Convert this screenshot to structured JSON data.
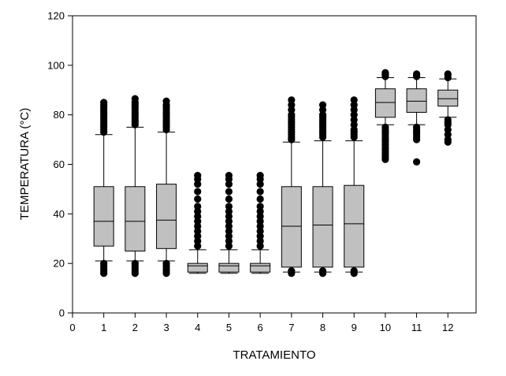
{
  "chart_data": {
    "type": "boxplot",
    "xlabel": "TRATAMIENTO",
    "ylabel": "TEMPERATURA (°C)",
    "xlim": [
      0,
      12.9
    ],
    "ylim": [
      0,
      120
    ],
    "x_ticks": [
      0,
      1,
      2,
      3,
      4,
      5,
      6,
      7,
      8,
      9,
      10,
      11,
      12
    ],
    "y_ticks": [
      0,
      20,
      40,
      60,
      80,
      100,
      120
    ],
    "grid": false,
    "box_fill": "#c0c0c0",
    "boxes": [
      {
        "x": 1,
        "whisker_low": 21,
        "q1": 27,
        "median": 37,
        "q3": 51,
        "whisker_high": 72,
        "outliers": [
          16,
          17,
          18,
          19,
          20,
          73,
          74,
          75,
          76,
          77,
          78,
          79,
          80,
          81,
          82,
          83,
          84,
          85
        ]
      },
      {
        "x": 2,
        "whisker_low": 21,
        "q1": 25,
        "median": 37,
        "q3": 51,
        "whisker_high": 75,
        "outliers": [
          16,
          17,
          18,
          19,
          20,
          76,
          77,
          78,
          79,
          80,
          81,
          82,
          83,
          84,
          85,
          86.5
        ]
      },
      {
        "x": 3,
        "whisker_low": 21,
        "q1": 26,
        "median": 37.5,
        "q3": 52,
        "whisker_high": 73,
        "outliers": [
          16,
          17,
          18,
          19,
          20,
          74,
          75,
          76,
          77,
          78,
          79,
          80,
          81,
          82,
          83,
          84,
          85.5
        ]
      },
      {
        "x": 4,
        "whisker_low": 16,
        "q1": 16.5,
        "median": 19,
        "q3": 20,
        "whisker_high": 25.5,
        "outliers": [
          27,
          29,
          31,
          33,
          35,
          37,
          39,
          41,
          43,
          46,
          49,
          52,
          54,
          55.5
        ]
      },
      {
        "x": 5,
        "whisker_low": 16,
        "q1": 16.5,
        "median": 19,
        "q3": 20,
        "whisker_high": 25.5,
        "outliers": [
          27,
          29,
          31,
          33,
          35,
          37,
          39,
          41,
          43,
          46,
          49,
          52,
          54,
          55.5
        ]
      },
      {
        "x": 6,
        "whisker_low": 16,
        "q1": 16.5,
        "median": 19,
        "q3": 20,
        "whisker_high": 25.5,
        "outliers": [
          27,
          29,
          31,
          33,
          35,
          37,
          39,
          41,
          43,
          46,
          49,
          52,
          54,
          55.5
        ]
      },
      {
        "x": 7,
        "whisker_low": 16.5,
        "q1": 18.5,
        "median": 35,
        "q3": 51,
        "whisker_high": 69,
        "outliers": [
          16,
          17,
          70,
          71,
          72,
          73,
          74,
          75,
          76,
          77,
          78,
          79,
          80,
          82,
          84,
          86
        ]
      },
      {
        "x": 8,
        "whisker_low": 16.5,
        "q1": 18.5,
        "median": 35.5,
        "q3": 51,
        "whisker_high": 69.5,
        "outliers": [
          16,
          17,
          71,
          72,
          73,
          74,
          75,
          76,
          77,
          78,
          79,
          80,
          82,
          84
        ]
      },
      {
        "x": 9,
        "whisker_low": 16.5,
        "q1": 18.5,
        "median": 36,
        "q3": 51.5,
        "whisker_high": 69.5,
        "outliers": [
          16,
          17,
          71,
          72,
          73,
          74,
          76,
          78,
          80,
          82,
          84,
          86
        ]
      },
      {
        "x": 10,
        "whisker_low": 76,
        "q1": 79,
        "median": 85,
        "q3": 90.5,
        "whisker_high": 95,
        "outliers": [
          62,
          63,
          64,
          65,
          66,
          67,
          68,
          69,
          70,
          71,
          72,
          73,
          74,
          75,
          95.5,
          96,
          96.5,
          97
        ]
      },
      {
        "x": 11,
        "whisker_low": 76,
        "q1": 81,
        "median": 85.5,
        "q3": 90.5,
        "whisker_high": 95,
        "outliers": [
          61,
          70,
          71,
          72,
          73,
          74,
          75,
          95.5,
          96,
          96.5
        ]
      },
      {
        "x": 12,
        "whisker_low": 79,
        "q1": 83.5,
        "median": 86.5,
        "q3": 90,
        "whisker_high": 94.5,
        "outliers": [
          69,
          70,
          72,
          74,
          76,
          77,
          78,
          95,
          96,
          96.5
        ]
      }
    ]
  }
}
